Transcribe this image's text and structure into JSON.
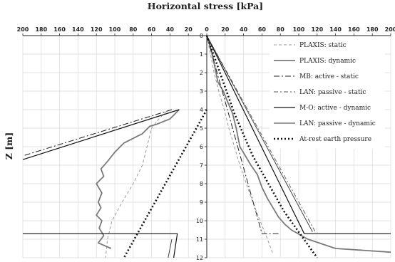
{
  "chart_data": {
    "type": "line",
    "title": "Horizontal stress [kPa]",
    "xlabel": "",
    "ylabel": "Z [m]",
    "xlim": [
      -200,
      200
    ],
    "ylim": [
      0,
      12
    ],
    "y_inverted": true,
    "x_axis_position": "top",
    "x_tick_labels": [
      "200",
      "180",
      "160",
      "140",
      "120",
      "100",
      "80",
      "60",
      "40",
      "20",
      "0",
      "20",
      "40",
      "60",
      "80",
      "100",
      "120",
      "140",
      "160",
      "180",
      "200"
    ],
    "y_tick_labels": [
      "0",
      "1",
      "2",
      "3",
      "4",
      "5",
      "6",
      "7",
      "8",
      "9",
      "10",
      "11",
      "12"
    ],
    "grid": true,
    "legend_position": "top-right",
    "series": [
      {
        "name": "PLAXIS: static",
        "style": "dashed-light",
        "color": "#999999",
        "segments": [
          [
            [
              0,
              0
            ],
            [
              4,
              1
            ],
            [
              8,
              2
            ],
            [
              13,
              3
            ],
            [
              19,
              4
            ],
            [
              24,
              5
            ],
            [
              30,
              6
            ],
            [
              36,
              7
            ],
            [
              43,
              8
            ],
            [
              50,
              9
            ],
            [
              58,
              10
            ],
            [
              66,
              11
            ],
            [
              72,
              11.8
            ]
          ],
          [
            [
              -44,
              4.1
            ],
            [
              -52,
              4.5
            ],
            [
              -60,
              5
            ],
            [
              -65,
              6
            ],
            [
              -70,
              7
            ],
            [
              -80,
              8
            ],
            [
              -92,
              9
            ],
            [
              -103,
              10
            ],
            [
              -108,
              11
            ],
            [
              -110,
              12
            ]
          ]
        ]
      },
      {
        "name": "PLAXIS: dynamic",
        "style": "solid-grey-thick",
        "color": "#7a7a7a",
        "segments": [
          [
            [
              0,
              0
            ],
            [
              5,
              0.8
            ],
            [
              8,
              1.5
            ],
            [
              12,
              2.5
            ],
            [
              18,
              3
            ],
            [
              22,
              3.5
            ],
            [
              28,
              4.2
            ],
            [
              32,
              5
            ],
            [
              36,
              6
            ],
            [
              42,
              6.5
            ],
            [
              48,
              7
            ],
            [
              55,
              7.5
            ],
            [
              60,
              8.2
            ],
            [
              66,
              8.8
            ],
            [
              72,
              9.3
            ],
            [
              78,
              9.8
            ],
            [
              85,
              10.2
            ],
            [
              92,
              10.5
            ],
            [
              110,
              11
            ],
            [
              140,
              11.5
            ],
            [
              200,
              11.7
            ]
          ],
          [
            [
              -30,
              4.0
            ],
            [
              -40,
              4.5
            ],
            [
              -55,
              4.8
            ],
            [
              -62,
              4.9
            ],
            [
              -70,
              5.3
            ],
            [
              -90,
              5.8
            ],
            [
              -100,
              6.3
            ],
            [
              -108,
              6.8
            ],
            [
              -115,
              7.2
            ],
            [
              -112,
              7.6
            ],
            [
              -120,
              8
            ],
            [
              -114,
              8.5
            ],
            [
              -118,
              9
            ],
            [
              -115,
              9.3
            ],
            [
              -120,
              9.7
            ],
            [
              -114,
              10
            ],
            [
              -117,
              10.4
            ],
            [
              -112,
              10.8
            ],
            [
              -118,
              11.2
            ],
            [
              -104,
              11.5
            ]
          ]
        ]
      },
      {
        "name": "MB: active - static",
        "style": "dash-dot",
        "color": "#222222",
        "segments": [
          [
            [
              0,
              0
            ],
            [
              60,
              10.7
            ],
            [
              80,
              10.7
            ]
          ],
          [
            [
              -38,
              4.0
            ],
            [
              -200,
              6.5
            ]
          ]
        ]
      },
      {
        "name": "LAN: passive - static",
        "style": "dash-dot-light",
        "color": "#555555",
        "segments": [
          [
            [
              0,
              0
            ],
            [
              118,
              10.6
            ]
          ]
        ]
      },
      {
        "name": "M-O: active - dynamic",
        "style": "solid-black",
        "color": "#111111",
        "segments": [
          [
            [
              0,
              0
            ],
            [
              106,
              10.7
            ],
            [
              200,
              10.7
            ]
          ],
          [
            [
              -30,
              4.0
            ],
            [
              -200,
              6.7
            ]
          ],
          [
            [
              -200,
              10.7
            ],
            [
              -32,
              10.7
            ],
            [
              -36,
              12
            ]
          ]
        ]
      },
      {
        "name": "LAN: passive - dynamic",
        "style": "solid-black-thin",
        "color": "#333333",
        "segments": [
          [
            [
              0,
              0
            ],
            [
              115,
              10.6
            ]
          ],
          [
            [
              -38,
              11.0
            ],
            [
              -42,
              12
            ]
          ]
        ]
      },
      {
        "name": "At-rest earth pressure",
        "style": "dotted-thick",
        "color": "#111111",
        "segments": [
          [
            [
              0,
              0
            ],
            [
              30,
              4.2
            ],
            [
              50,
              6.5
            ],
            [
              84,
              9.5
            ],
            [
              120,
              12
            ]
          ],
          [
            [
              0,
              4.0
            ],
            [
              -90,
              12
            ]
          ]
        ]
      }
    ]
  }
}
